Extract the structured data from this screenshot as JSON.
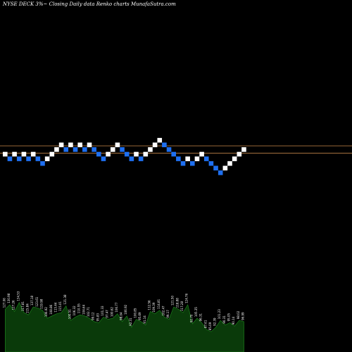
{
  "header": {
    "title": "NYSE DECK 3%~  Closing Daily data  Renko  charts MunafaSutra.com"
  },
  "chart_data": {
    "type": "renko",
    "title": "NYSE DECK 3%~  Closing Daily data  Renko  charts MunafaSutra.com",
    "brick_levels": [
      3,
      2,
      3,
      2,
      3,
      2,
      3,
      2,
      1,
      2,
      3,
      4,
      5,
      4,
      5,
      4,
      5,
      4,
      5,
      4,
      3,
      2,
      3,
      4,
      5,
      4,
      3,
      2,
      3,
      2,
      3,
      4,
      5,
      6,
      5,
      4,
      3,
      2,
      1,
      2,
      1,
      2,
      3,
      2,
      1,
      0,
      -1,
      0,
      1,
      2,
      3,
      4
    ],
    "brick_colors": {
      "up": "#ffffff",
      "down": "#1e6ff0"
    },
    "reference_lines": [
      {
        "level": 4.6,
        "color": "#c8874a"
      },
      {
        "level": 3.0,
        "color": "#c8874a"
      }
    ],
    "volume_labels": [
      "127.06",
      "130.98",
      "127.26",
      "134.53",
      "117.81",
      "115.84",
      "137.18",
      "123.61",
      "119.98",
      "106.92",
      "108.86",
      "113.44",
      "115.01",
      "121.38",
      "100.51",
      "106.32",
      "110.55",
      "104.64",
      "102.71",
      "99.12",
      "95.83",
      "101.33",
      "97.47",
      "100.62",
      "106.77",
      "98.04",
      "106.92",
      "92.31",
      "100.85",
      "95.69",
      "91.14",
      "112.56",
      "109.39",
      "114.81",
      "102.47",
      "99.17",
      "121.50",
      "118.88",
      "117.28",
      "124.76",
      "92.70",
      "105.35",
      "96.31",
      "87.61",
      "85.09",
      "92.39",
      "101.23",
      "90.31",
      "95.05",
      "90.14",
      "98.02",
      "96.99"
    ],
    "volume_values": [
      38,
      42,
      36,
      44,
      35,
      33,
      40,
      39,
      37,
      30,
      32,
      34,
      35,
      41,
      28,
      31,
      33,
      32,
      30,
      27,
      26,
      31,
      29,
      30,
      34,
      27,
      32,
      22,
      29,
      27,
      24,
      36,
      34,
      37,
      31,
      29,
      40,
      38,
      35,
      42,
      25,
      30,
      26,
      20,
      18,
      22,
      28,
      24,
      26,
      23,
      28,
      27
    ],
    "volume_fill": "#0a3a0a",
    "volume_stroke": "#1e8c1e"
  }
}
